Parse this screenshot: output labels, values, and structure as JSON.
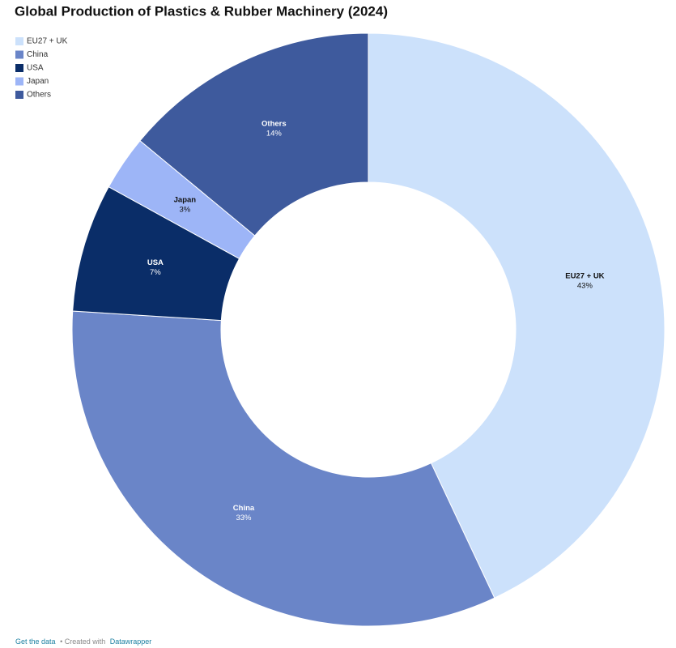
{
  "chart_data": {
    "type": "donut",
    "title": "Global Production of Plastics & Rubber Machinery (2024)",
    "categories": [
      "EU27 + UK",
      "China",
      "USA",
      "Japan",
      "Others"
    ],
    "values": [
      43,
      33,
      7,
      3,
      14
    ],
    "value_labels": [
      "43%",
      "33%",
      "7%",
      "3%",
      "14%"
    ],
    "colors": [
      "#cce1fb",
      "#6a85c8",
      "#0a2d68",
      "#9db5f7",
      "#3e5a9d"
    ],
    "legend": "top-left"
  },
  "footer": {
    "get_data": "Get the data",
    "created_with": "• Created with",
    "tool": "Datawrapper"
  }
}
